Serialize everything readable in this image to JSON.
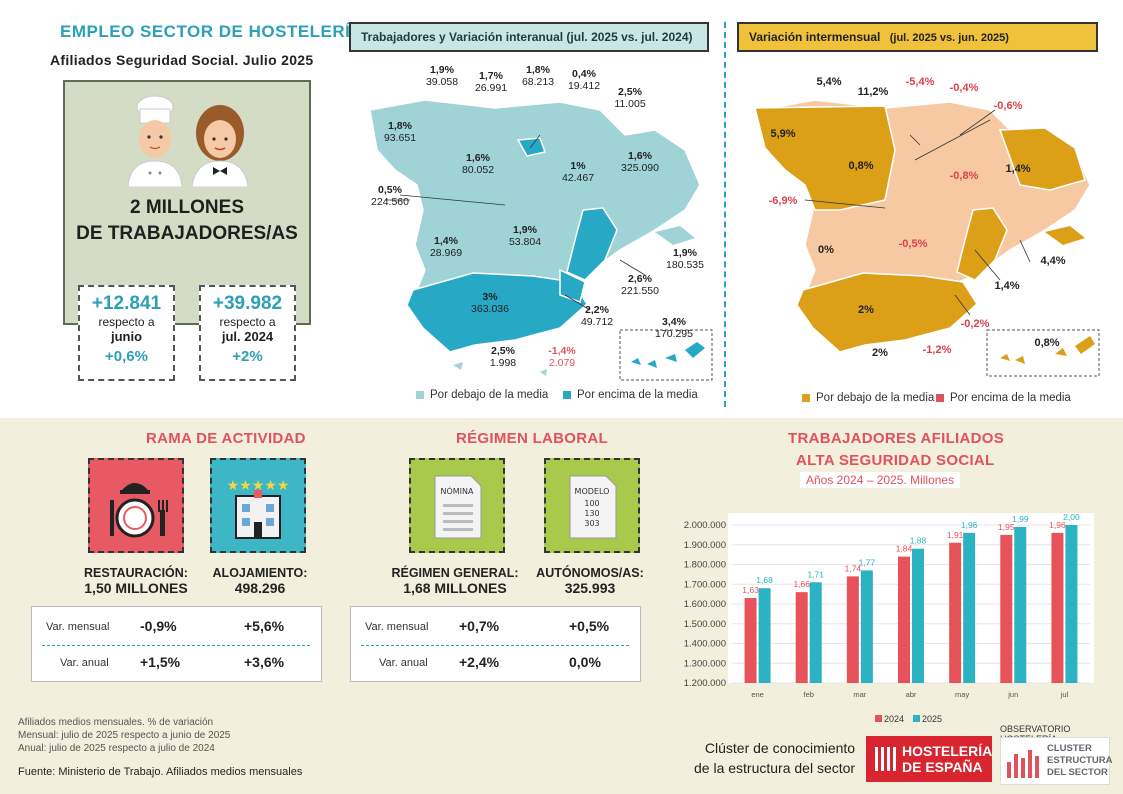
{
  "header": {
    "title": "EMPLEO SECTOR DE HOSTELERÍA",
    "subtitle": "Afiliados Seguridad Social. Julio 2025",
    "headline_line1": "2 MILLONES",
    "headline_line2": "DE TRABAJADORES/AS"
  },
  "kpis": [
    {
      "value": "+12.841",
      "l1": "respecto a",
      "l2": "junio",
      "pct": "+0,6%"
    },
    {
      "value": "+39.982",
      "l1": "respecto a",
      "l2": "jul. 2024",
      "pct": "+2%"
    }
  ],
  "map_left": {
    "title": "Trabajadores y Variación interanual (jul. 2025 vs. jul. 2024)",
    "legend_below": "Por debajo de la media",
    "legend_above": "Por encima de la media",
    "colors": {
      "below": "#9fd3d6",
      "above": "#27a9c6"
    },
    "regions": [
      {
        "pct": "1,9%",
        "val": "39.058"
      },
      {
        "pct": "1,7%",
        "val": "26.991"
      },
      {
        "pct": "1,8%",
        "val": "68.213"
      },
      {
        "pct": "0,4%",
        "val": "19.412"
      },
      {
        "pct": "2,5%",
        "val": "11.005"
      },
      {
        "pct": "1,8%",
        "val": "93.651"
      },
      {
        "pct": "1,6%",
        "val": "80.052"
      },
      {
        "pct": "1%",
        "val": "42.467"
      },
      {
        "pct": "1,6%",
        "val": "325.090"
      },
      {
        "pct": "0,5%",
        "val": "224.560"
      },
      {
        "pct": "1,9%",
        "val": "53.804"
      },
      {
        "pct": "1,4%",
        "val": "28.969"
      },
      {
        "pct": "1,9%",
        "val": "180.535"
      },
      {
        "pct": "2,6%",
        "val": "221.550"
      },
      {
        "pct": "3%",
        "val": "363.036"
      },
      {
        "pct": "2,2%",
        "val": "49.712"
      },
      {
        "pct": "3,4%",
        "val": "170.295"
      },
      {
        "pct": "2,5%",
        "val": "1.998"
      },
      {
        "pct": "-1,4%",
        "val": "2.079"
      }
    ]
  },
  "map_right": {
    "title": "Variación intermensual",
    "title_suffix": "(jul. 2025 vs. jun. 2025)",
    "legend_below": "Por debajo de la media",
    "legend_above": "Por encima de la media",
    "colors": {
      "below": "#f7c9a3",
      "above": "#dba018"
    },
    "regions": [
      "5,4%",
      "11,2%",
      "-5,4%",
      "-0,4%",
      "-0,6%",
      "5,9%",
      "0,8%",
      "-0,8%",
      "1,4%",
      "-6,9%",
      "0%",
      "-0,5%",
      "4,4%",
      "1,4%",
      "2%",
      "-0,2%",
      "0,8%",
      "2%",
      "-1,2%"
    ]
  },
  "rama": {
    "title": "RAMA DE ACTIVIDAD",
    "rest_label": "RESTAURACIÓN:",
    "rest_value": "1,50 MILLONES",
    "aloj_label": "ALOJAMIENTO:",
    "aloj_value": "498.296",
    "row1_label": "Var. mensual",
    "row1_a": "-0,9%",
    "row1_b": "+5,6%",
    "row2_label": "Var. anual",
    "row2_a": "+1,5%",
    "row2_b": "+3,6%"
  },
  "regimen": {
    "title": "RÉGIMEN LABORAL",
    "doc1": "NÓMINA",
    "doc2_l1": "MODELO",
    "doc2_l2": "100",
    "doc2_l3": "130",
    "doc2_l4": "303",
    "gen_label": "RÉGIMEN GENERAL:",
    "gen_value": "1,68 MILLONES",
    "aut_label": "AUTÓNOMOS/AS:",
    "aut_value": "325.993",
    "row1_label": "Var. mensual",
    "row1_a": "+0,7%",
    "row1_b": "+0,5%",
    "row2_label": "Var. anual",
    "row2_a": "+2,4%",
    "row2_b": "0,0%"
  },
  "notes": {
    "l1": "Afiliados medios mensuales. % de variación",
    "l2": "Mensual:  julio de 2025 respecto a junio de 2025",
    "l3": "Anual:  julio de 2025 respecto a julio de 2024",
    "source": "Fuente: Ministerio de Trabajo. Afiliados medios mensuales"
  },
  "footer": {
    "cluster_l1": "Clúster de conocimiento",
    "cluster_l2": "de la estructura del sector",
    "hde_l1": "HOSTELERÍA",
    "hde_l2": "DE ESPAÑA",
    "obs": "OBSERVATORIO HOSTELERÍA",
    "cl1": "CLUSTER",
    "cl2": "ESTRUCTURA",
    "cl3": "DEL SECTOR"
  },
  "chart_data": {
    "type": "bar",
    "title": "TRABAJADORES AFILIADOS",
    "title2": "ALTA SEGURIDAD SOCIAL",
    "subtitle": "Años 2024 – 2025. Millones",
    "categories": [
      "ene",
      "feb",
      "mar",
      "abr",
      "may",
      "jun",
      "jul"
    ],
    "series": [
      {
        "name": "2024",
        "color": "#e8525b",
        "values": [
          1.63,
          1.66,
          1.74,
          1.84,
          1.91,
          1.95,
          1.96
        ],
        "labels": [
          "1,63",
          "1,66",
          "1,74",
          "1,84",
          "1,91",
          "1,95",
          "1,96"
        ]
      },
      {
        "name": "2025",
        "color": "#2bb3c4",
        "values": [
          1.68,
          1.71,
          1.77,
          1.88,
          1.96,
          1.99,
          2.0
        ],
        "labels": [
          "1,68",
          "1,71",
          "1,77",
          "1,88",
          "1,96",
          "1,99",
          "2,00"
        ]
      }
    ],
    "ylim": [
      1.2,
      2.0
    ],
    "yticks": [
      1.2,
      1.3,
      1.4,
      1.5,
      1.6,
      1.7,
      1.8,
      1.9,
      2.0
    ],
    "ytick_labels": [
      "1.200.000",
      "1.300.000",
      "1.400.000",
      "1.500.000",
      "1.600.000",
      "1.700.000",
      "1.800.000",
      "1.900.000",
      "2.000.000"
    ],
    "legend_position": "bottom"
  }
}
